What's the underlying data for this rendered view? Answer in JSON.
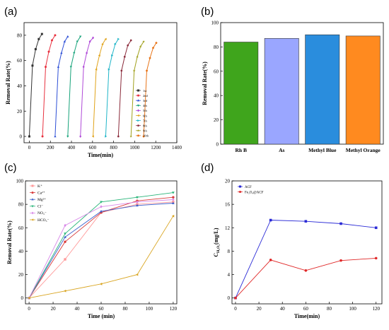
{
  "figure": {
    "panel_labels": [
      "(a)",
      "(b)",
      "(c)",
      "(d)"
    ]
  },
  "chart_data": [
    {
      "panel": "(a)",
      "type": "line",
      "xlabel": "Time(min)",
      "ylabel": "Removal Rate(%)",
      "xlim": [
        -50,
        1400
      ],
      "ylim": [
        -5,
        90
      ],
      "xticks": [
        0,
        200,
        400,
        600,
        800,
        1000,
        1200,
        1400
      ],
      "yticks": [
        0,
        20,
        40,
        60,
        80
      ],
      "legend_position": "right",
      "series": [
        {
          "name": "1st",
          "color": "#333333",
          "marker": "square",
          "x": [
            0,
            30,
            60,
            90,
            120
          ],
          "y": [
            0,
            56,
            69,
            77,
            81
          ]
        },
        {
          "name": "2nd",
          "color": "#e8313f",
          "marker": "circle",
          "x": [
            125,
            155,
            185,
            215,
            245
          ],
          "y": [
            0,
            55,
            67,
            76,
            80
          ]
        },
        {
          "name": "3rd",
          "color": "#2d4fd6",
          "marker": "triangle",
          "x": [
            245,
            275,
            305,
            335,
            365
          ],
          "y": [
            0,
            55,
            66,
            75,
            79
          ]
        },
        {
          "name": "4th",
          "color": "#16a37a",
          "marker": "tri-down",
          "x": [
            365,
            395,
            425,
            455,
            485
          ],
          "y": [
            0,
            55,
            66,
            75,
            79
          ]
        },
        {
          "name": "5th",
          "color": "#b04ad8",
          "marker": "diamond",
          "x": [
            485,
            515,
            545,
            575,
            605
          ],
          "y": [
            0,
            55,
            66,
            75,
            78
          ]
        },
        {
          "name": "6th",
          "color": "#e0a31a",
          "marker": "tri-left",
          "x": [
            605,
            635,
            665,
            695,
            725
          ],
          "y": [
            0,
            53,
            64,
            73,
            77
          ]
        },
        {
          "name": "7th",
          "color": "#1fb5c8",
          "marker": "tri-right",
          "x": [
            725,
            755,
            785,
            815,
            845
          ],
          "y": [
            0,
            53,
            64,
            73,
            77
          ]
        },
        {
          "name": "8th",
          "color": "#8a2a3a",
          "marker": "hexagon",
          "x": [
            845,
            875,
            905,
            935,
            965
          ],
          "y": [
            0,
            52,
            63,
            72,
            76
          ]
        },
        {
          "name": "9th",
          "color": "#a1a11e",
          "marker": "star",
          "x": [
            965,
            995,
            1025,
            1055,
            1085
          ],
          "y": [
            0,
            52,
            63,
            71,
            75
          ]
        },
        {
          "name": "10th",
          "color": "#e8751a",
          "marker": "pentagon",
          "x": [
            1085,
            1115,
            1145,
            1175,
            1205
          ],
          "y": [
            0,
            52,
            62,
            70,
            74
          ]
        }
      ]
    },
    {
      "panel": "(b)",
      "type": "bar",
      "xlabel": "",
      "ylabel": "Removal Rate(%)",
      "ylim": [
        0,
        100
      ],
      "yticks": [
        0,
        20,
        40,
        60,
        80,
        100
      ],
      "categories": [
        "Rh B",
        "As",
        "Methyl Blue",
        "Methyl Orange"
      ],
      "values": [
        84,
        87,
        90,
        89
      ],
      "colors": [
        "#3fa51c",
        "#9aa6ff",
        "#2a8ddd",
        "#ff8a1f"
      ]
    },
    {
      "panel": "(c)",
      "type": "line",
      "xlabel": "Time (min)",
      "ylabel": "Removal Rate(%)",
      "xlim": [
        -3,
        123
      ],
      "ylim": [
        -5,
        100
      ],
      "xticks": [
        0,
        20,
        40,
        60,
        80,
        100,
        120
      ],
      "yticks": [
        0,
        20,
        40,
        60,
        80,
        100
      ],
      "legend_position": "top-left",
      "series": [
        {
          "name": "K⁺",
          "color": "#ff9a9a",
          "marker": "square",
          "x": [
            0,
            30,
            60,
            90,
            120
          ],
          "y": [
            0,
            33,
            73,
            80,
            82
          ]
        },
        {
          "name": "Ca²⁺",
          "color": "#d83b3b",
          "marker": "circle",
          "x": [
            0,
            30,
            60,
            90,
            120
          ],
          "y": [
            0,
            48,
            73,
            83,
            86
          ]
        },
        {
          "name": "Mg²⁺",
          "color": "#3a5fcd",
          "marker": "triangle",
          "x": [
            0,
            30,
            60,
            90,
            120
          ],
          "y": [
            0,
            52,
            74,
            79,
            81
          ]
        },
        {
          "name": "Cl⁻",
          "color": "#2ab57a",
          "marker": "tri-down",
          "x": [
            0,
            30,
            60,
            90,
            120
          ],
          "y": [
            0,
            55,
            82,
            86,
            90
          ]
        },
        {
          "name": "NO₃⁻",
          "color": "#d98ae8",
          "marker": "diamond",
          "x": [
            0,
            30,
            60,
            90,
            120
          ],
          "y": [
            0,
            62,
            78,
            82,
            84
          ]
        },
        {
          "name": "HCO₃⁻",
          "color": "#d9a521",
          "marker": "tri-left",
          "x": [
            0,
            30,
            60,
            90,
            120
          ],
          "y": [
            0,
            6,
            12,
            20,
            70
          ]
        }
      ]
    },
    {
      "panel": "(d)",
      "type": "line",
      "xlabel": "Time(min)",
      "ylabel": "C_H2O2(mg/L)",
      "ylabel_main": "C",
      "ylabel_sub": "H₂O₂",
      "ylabel_unit": "(mg/L)",
      "xlim": [
        -3,
        125
      ],
      "ylim": [
        -1,
        20
      ],
      "xticks": [
        0,
        20,
        40,
        60,
        80,
        100,
        120
      ],
      "yticks": [
        0,
        4,
        8,
        12,
        16,
        20
      ],
      "legend_position": "top-left",
      "series": [
        {
          "name": "ACF",
          "color": "#2a2ad6",
          "marker": "square",
          "x": [
            0,
            30,
            60,
            90,
            120
          ],
          "y": [
            0,
            13.3,
            13.1,
            12.7,
            12.0
          ]
        },
        {
          "name": "Fe₃O₄@ACF",
          "color": "#e02828",
          "marker": "circle",
          "x": [
            0,
            30,
            60,
            90,
            120
          ],
          "y": [
            0,
            6.5,
            4.7,
            6.4,
            6.8
          ]
        }
      ]
    }
  ]
}
